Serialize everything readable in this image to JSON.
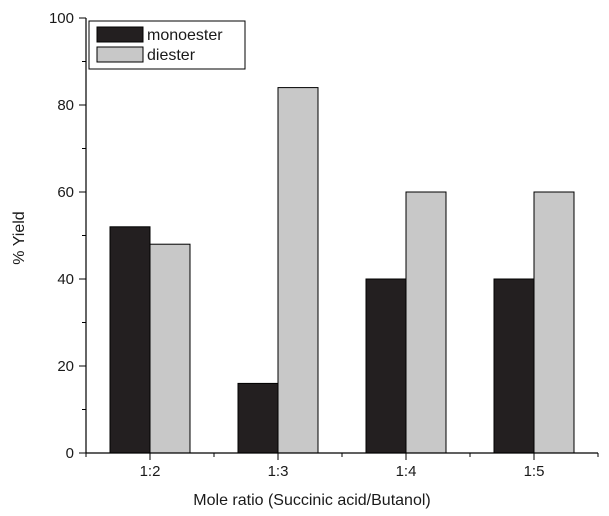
{
  "chart_data": {
    "type": "bar",
    "title": "",
    "xlabel": "Mole ratio (Succinic acid/Butanol)",
    "ylabel": "% Yield",
    "categories": [
      "1:2",
      "1:3",
      "1:4",
      "1:5"
    ],
    "series": [
      {
        "name": "monoester",
        "values": [
          52,
          16,
          40,
          40
        ],
        "color": "#231f20"
      },
      {
        "name": "diester",
        "values": [
          48,
          84,
          60,
          60
        ],
        "color": "#c8c8c8"
      }
    ],
    "ylim": [
      0,
      100
    ],
    "yticks": [
      0,
      20,
      40,
      60,
      80,
      100
    ],
    "grid": false,
    "legend_position": "top-left"
  }
}
